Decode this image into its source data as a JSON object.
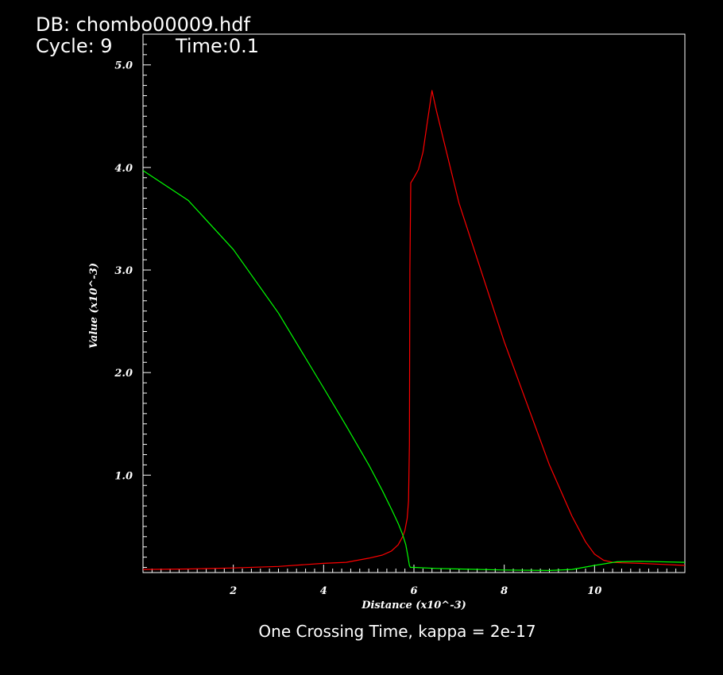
{
  "header": {
    "db_label": "DB: chombo00009.hdf",
    "cycle_label": "Cycle: 9",
    "time_label": "Time:0.1"
  },
  "caption": "One Crossing Time, kappa = 2e-17",
  "colors": {
    "background": "#000000",
    "axes": "#ffffff",
    "series_red": "#ff0000",
    "series_green": "#00ff00"
  },
  "chart_data": {
    "type": "line",
    "xlabel": "Distance (x10^-3)",
    "ylabel": "Value (x10^-3)",
    "xlim": [
      0,
      12
    ],
    "ylim": [
      0.05,
      5.3
    ],
    "x_ticks": [
      2,
      4,
      6,
      8,
      10
    ],
    "x_tick_labels": [
      "2",
      "4",
      "6",
      "8",
      "10"
    ],
    "y_ticks": [
      1.0,
      2.0,
      3.0,
      4.0,
      5.0
    ],
    "y_tick_labels": [
      "1.0",
      "2.0",
      "3.0",
      "4.0",
      "5.0"
    ],
    "grid": false,
    "series": [
      {
        "color": "#ff0000",
        "x": [
          0,
          1,
          2,
          3,
          4,
          4.5,
          5,
          5.3,
          5.5,
          5.65,
          5.75,
          5.8,
          5.85,
          5.88,
          5.9,
          5.91,
          5.93,
          6.0,
          6.1,
          6.2,
          6.3,
          6.4,
          6.5,
          7,
          8,
          9,
          9.5,
          9.8,
          10.0,
          10.2,
          10.4,
          10.6,
          11,
          11.5,
          12
        ],
        "y": [
          0.08,
          0.085,
          0.095,
          0.11,
          0.14,
          0.15,
          0.19,
          0.22,
          0.26,
          0.32,
          0.4,
          0.46,
          0.58,
          0.75,
          1.3,
          3.0,
          3.85,
          3.9,
          3.98,
          4.15,
          4.45,
          4.75,
          4.55,
          3.65,
          2.3,
          1.1,
          0.6,
          0.35,
          0.23,
          0.17,
          0.15,
          0.145,
          0.14,
          0.13,
          0.12
        ]
      },
      {
        "color": "#00ff00",
        "x": [
          0,
          1,
          2,
          3,
          4,
          4.5,
          5,
          5.3,
          5.5,
          5.65,
          5.75,
          5.82,
          5.87,
          5.9,
          5.92,
          6.0,
          6.5,
          7,
          8,
          9,
          9.5,
          10,
          10.5,
          11,
          12
        ],
        "y": [
          3.97,
          3.68,
          3.2,
          2.58,
          1.85,
          1.48,
          1.1,
          0.85,
          0.67,
          0.53,
          0.42,
          0.32,
          0.2,
          0.12,
          0.1,
          0.1,
          0.09,
          0.085,
          0.075,
          0.07,
          0.08,
          0.12,
          0.155,
          0.16,
          0.15
        ]
      }
    ]
  }
}
